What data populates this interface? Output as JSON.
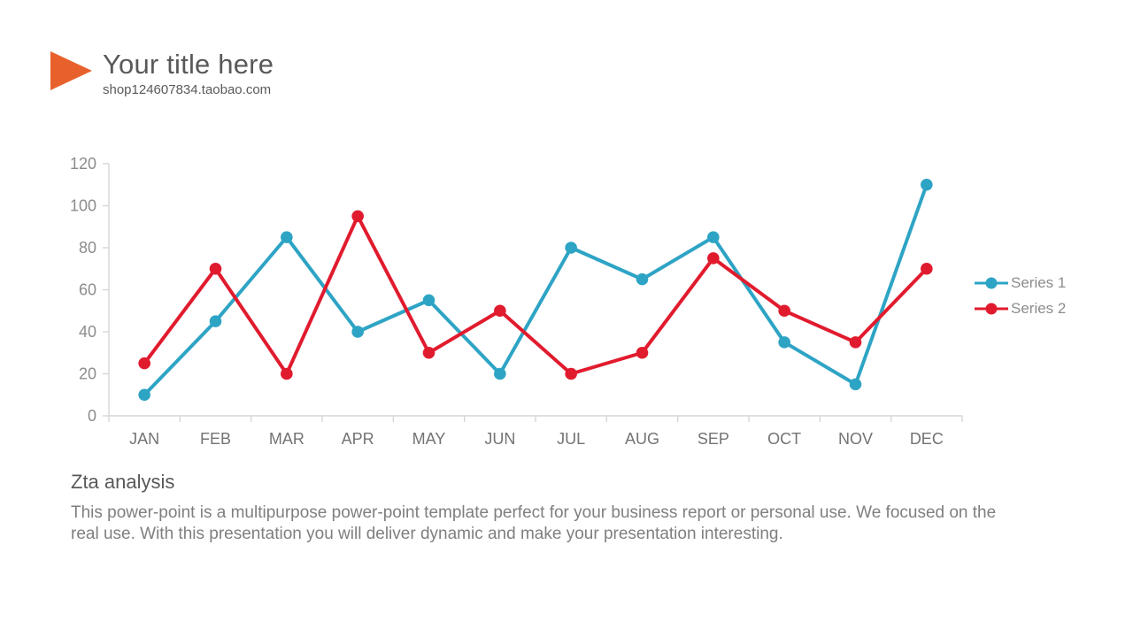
{
  "header": {
    "title": "Your title here",
    "subtitle": "shop124607834.taobao.com"
  },
  "colors": {
    "accent": "#E8612C",
    "series1": "#2EA4C5",
    "series2": "#E11B2E",
    "axis_line": "#D6D6D6",
    "y_tick_label": "#8C8C8C",
    "month_label": "#737373",
    "legend_label": "#8C8C8C"
  },
  "chart_data": {
    "type": "line",
    "categories": [
      "JAN",
      "FEB",
      "MAR",
      "APR",
      "MAY",
      "JUN",
      "JUL",
      "AUG",
      "SEP",
      "OCT",
      "NOV",
      "DEC"
    ],
    "series": [
      {
        "name": "Series 1",
        "color": "#2EA4C5",
        "values": [
          10,
          45,
          85,
          40,
          55,
          20,
          80,
          65,
          85,
          35,
          15,
          110
        ]
      },
      {
        "name": "Series 2",
        "color": "#E11B2E",
        "values": [
          25,
          70,
          20,
          95,
          30,
          50,
          20,
          30,
          75,
          50,
          35,
          70
        ]
      }
    ],
    "ylim": [
      0,
      120
    ],
    "yticks": [
      0,
      20,
      40,
      60,
      80,
      100,
      120
    ],
    "grid": false,
    "legend_position": "right"
  },
  "footer": {
    "heading": "Zta analysis",
    "body": "This power-point is a multipurpose power-point template perfect for your business report or personal use. We focused on the\nreal use. With this presentation you will deliver dynamic and make your presentation interesting."
  }
}
